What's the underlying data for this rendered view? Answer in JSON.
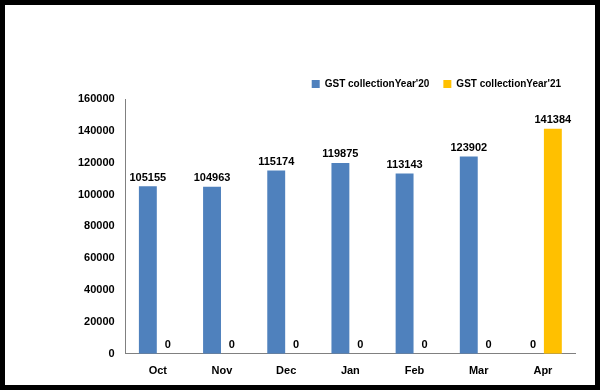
{
  "chart_data": {
    "type": "bar",
    "categories": [
      "Oct",
      "Nov",
      "Dec",
      "Jan",
      "Feb",
      "Mar",
      "Apr"
    ],
    "series": [
      {
        "name": "GST collectionYear'20",
        "color": "#4f81bd",
        "values": [
          105155,
          104963,
          115174,
          119875,
          113143,
          123902,
          0
        ]
      },
      {
        "name": "GST collectionYear'21",
        "color": "#ffc000",
        "values": [
          0,
          0,
          0,
          0,
          0,
          0,
          141384
        ]
      }
    ],
    "ylim": [
      0,
      160000
    ],
    "yticks": [
      0,
      20000,
      40000,
      60000,
      80000,
      100000,
      120000,
      140000,
      160000
    ],
    "grid": false,
    "legend": "top-right",
    "data_labels": true
  }
}
